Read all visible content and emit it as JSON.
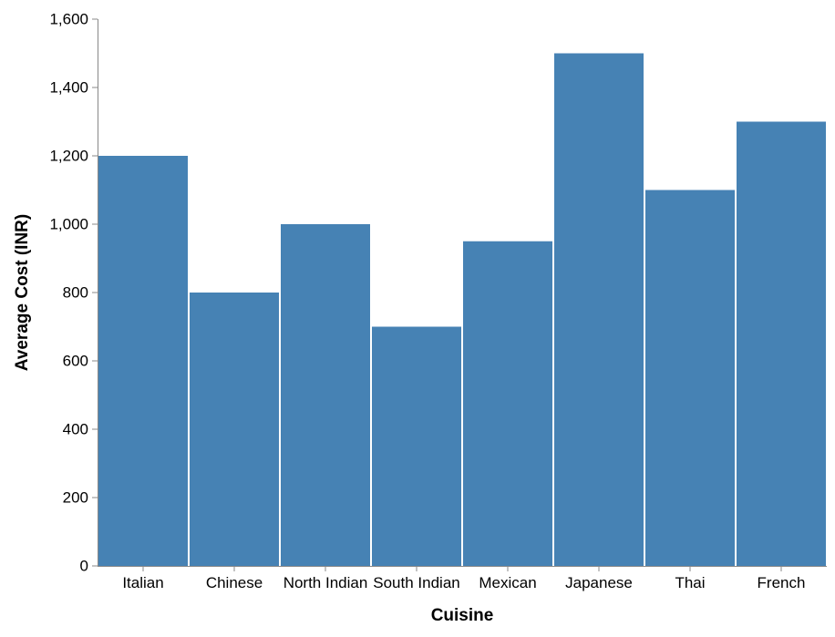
{
  "chart_data": {
    "type": "bar",
    "categories": [
      "Italian",
      "Chinese",
      "North Indian",
      "South Indian",
      "Mexican",
      "Japanese",
      "Thai",
      "French"
    ],
    "values": [
      1200,
      800,
      1000,
      700,
      950,
      1500,
      1100,
      1300
    ],
    "title": "",
    "xlabel": "Cuisine",
    "ylabel": "Average Cost (INR)",
    "ylim": [
      0,
      1600
    ],
    "yticks": [
      0,
      200,
      400,
      600,
      800,
      1000,
      1200,
      1400,
      1600
    ],
    "ytick_labels": [
      "0",
      "200",
      "400",
      "600",
      "800",
      "1,000",
      "1,200",
      "1,400",
      "1,600"
    ],
    "grid": false,
    "bar_color": "#4682b4",
    "axis_color": "#888888"
  }
}
